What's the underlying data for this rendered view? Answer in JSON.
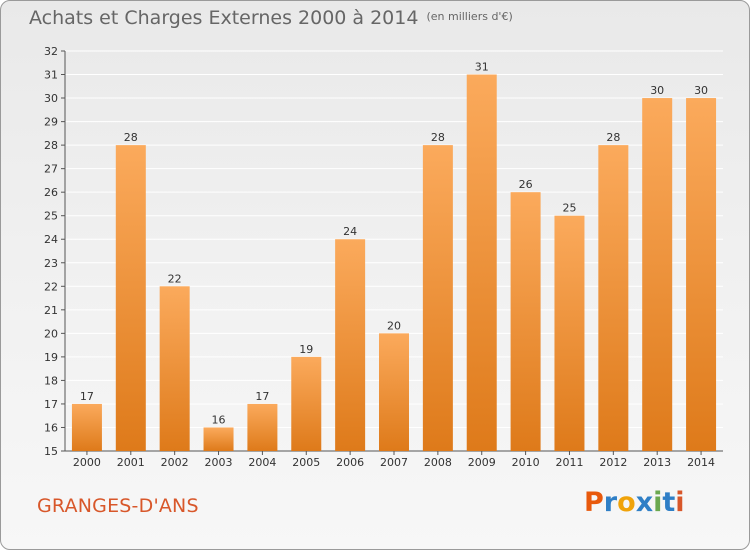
{
  "title": "Achats et Charges Externes 2000 à 2014",
  "subtitle": "(en milliers d'€)",
  "commune": "GRANGES-D'ANS",
  "logo": {
    "text": "Proxiti",
    "colors": [
      "#e8590c",
      "#2f7fc6",
      "#f0a30a",
      "#2f7fc6",
      "#6aa84f",
      "#2f7fc6",
      "#d8572a"
    ]
  },
  "colors": {
    "bar_light": "#fbaa5c",
    "bar_dark": "#de7a1a",
    "commune": "#d8572a",
    "grid": "#ffffff"
  },
  "chart_data": {
    "type": "bar",
    "title": "Achats et Charges Externes 2000 à 2014",
    "subtitle": "(en milliers d'€)",
    "categories": [
      "2000",
      "2001",
      "2002",
      "2003",
      "2004",
      "2005",
      "2006",
      "2007",
      "2008",
      "2009",
      "2010",
      "2011",
      "2012",
      "2013",
      "2014"
    ],
    "values": [
      17,
      28,
      22,
      16,
      17,
      19,
      24,
      20,
      28,
      31,
      26,
      25,
      28,
      30,
      30
    ],
    "ylim": [
      15,
      32
    ],
    "yticks": [
      15,
      16,
      17,
      18,
      19,
      20,
      21,
      22,
      23,
      24,
      25,
      26,
      27,
      28,
      29,
      30,
      31,
      32
    ],
    "grid": true,
    "data_labels": true
  }
}
